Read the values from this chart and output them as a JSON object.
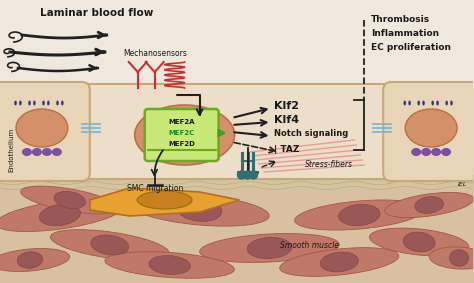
{
  "bg_color": "#f0e8dc",
  "endo_layer_color": "#e8d5b8",
  "endo_cell_fill": "#e8d5b8",
  "endo_cell_stroke": "#c8a878",
  "iel_color": "#d8c8a8",
  "smooth_muscle_bg": "#d8c0a0",
  "sm_cell_fill": "#c07868",
  "sm_cell_stroke": "#a05848",
  "sm_nucleus_fill": "#985858",
  "smc_cell_fill": "#e8a030",
  "smc_nucleus_fill": "#c88020",
  "nucleus_fill": "#d49068",
  "nucleus_stroke": "#b87048",
  "mef2_nucleus_fill": "#d49068",
  "mef2_box_fill": "#c8e878",
  "mef2_box_stroke": "#70a820",
  "red_color": "#d03030",
  "pink_fiber": "#e89090",
  "purple_color": "#8050a0",
  "blue_dark": "#303080",
  "cyan_color": "#60a8c0",
  "teal_color": "#307070",
  "arrow_color": "#202020",
  "text_color": "#1a1a1a",
  "green_arrow": "#40a020",
  "laminar_text": "Laminar blood flow",
  "mechanosensor_text": "Mechanosensors",
  "endothelium_text": "Endothelium",
  "smc_text": "SMC migration",
  "smooth_muscle_text": "Smooth muscle",
  "iel_text": "IEL",
  "stress_fiber_text": "Stress-fibers",
  "thrombosis_text": "Thrombosis",
  "inflammation_text": "Inflammation",
  "ec_text": "EC proliferation",
  "klf2_text": "Klf2",
  "klf4_text": "Klf4",
  "notch_text": "Notch signaling",
  "taz_text": "| TAZ",
  "mef2a_text": "MEF2A",
  "mef2c_text": "MEF2C",
  "mef2d_text": "MEF2D",
  "figsize": [
    4.74,
    2.83
  ],
  "dpi": 100
}
